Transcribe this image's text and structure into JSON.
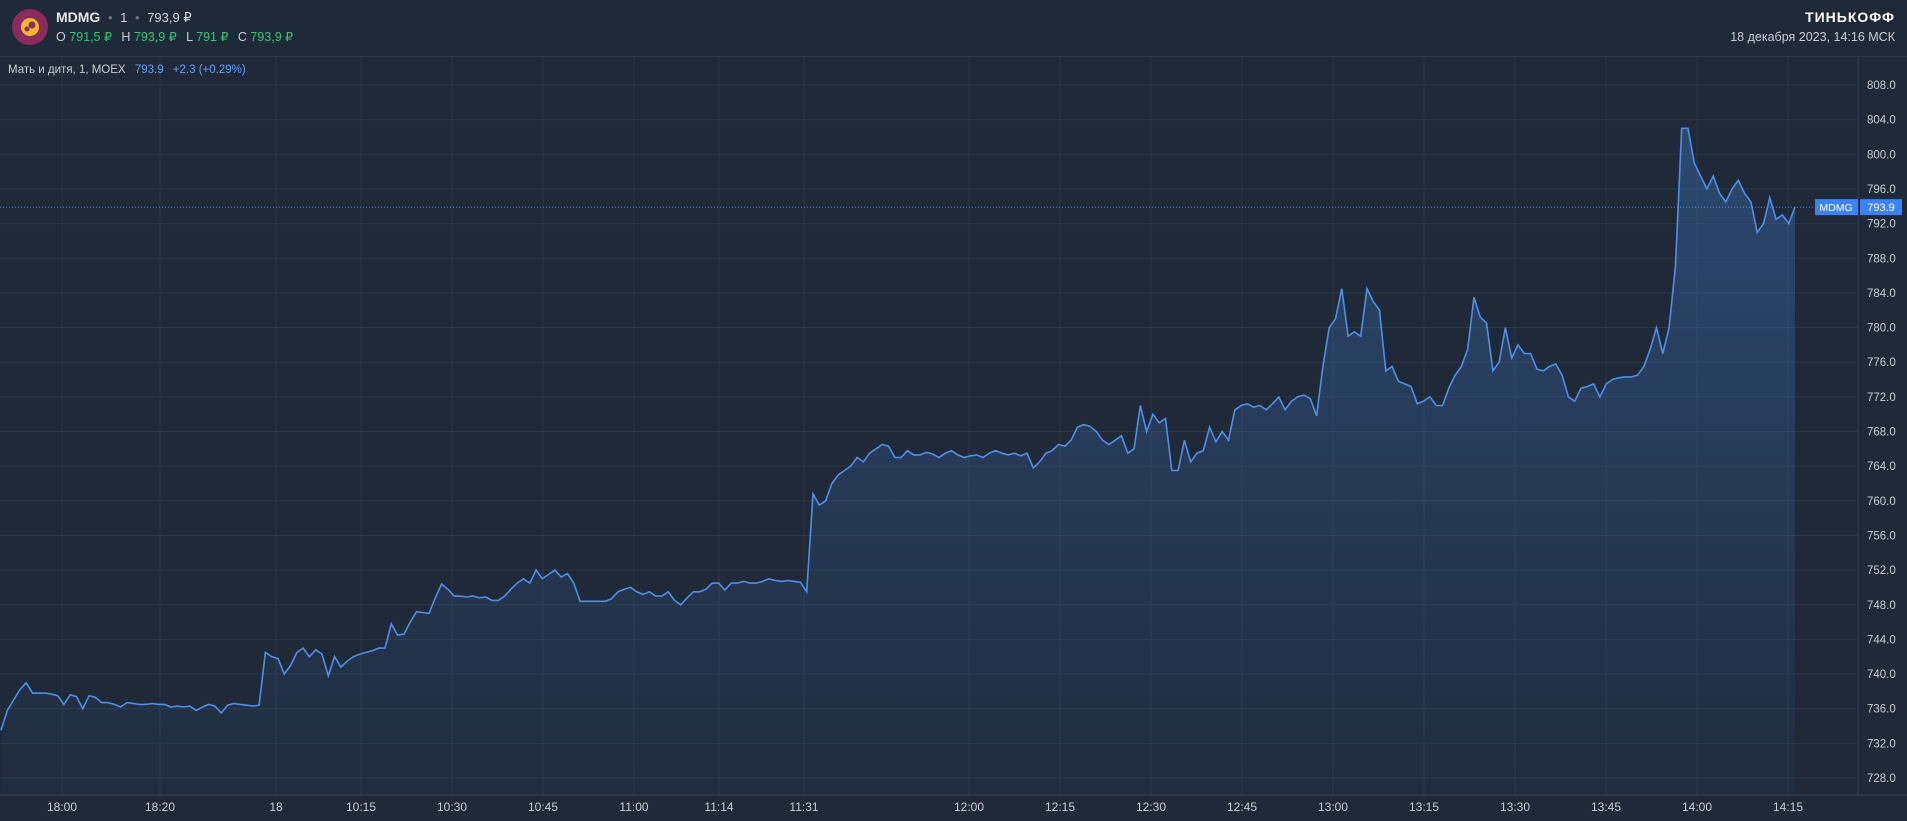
{
  "header": {
    "symbol": "MDMG",
    "interval": "1",
    "last_price": "793,9 ₽",
    "ohlc": [
      {
        "label": "O",
        "value": "791,5 ₽"
      },
      {
        "label": "H",
        "value": "793,9 ₽"
      },
      {
        "label": "L",
        "value": "791 ₽"
      },
      {
        "label": "C",
        "value": "793,9 ₽"
      }
    ],
    "brand": "ТИНЬКОФФ",
    "datetime": "18 декабря 2023, 14:16 МСК"
  },
  "legend": {
    "name": "Мать и дитя, 1, MOEX",
    "price": "793.9",
    "change": "+2.3 (+0.29%)"
  },
  "colors": {
    "background": "#1f2937",
    "line": "#4f8fe8",
    "up": "#2ecc71",
    "grid": "#2b3646"
  },
  "chart_data": {
    "type": "area",
    "title": "",
    "xlabel": "",
    "ylabel": "",
    "ylim": [
      726,
      810
    ],
    "y_ticks": [
      "808.0",
      "804.0",
      "800.0",
      "796.0",
      "792.0",
      "788.0",
      "784.0",
      "780.0",
      "776.0",
      "772.0",
      "768.0",
      "764.0",
      "760.0",
      "756.0",
      "752.0",
      "748.0",
      "744.0",
      "740.0",
      "736.0",
      "732.0",
      "728.0"
    ],
    "x_ticks": [
      "18:00",
      "18:20",
      "18",
      "10:15",
      "10:30",
      "10:45",
      "11:00",
      "11:14",
      "11:31",
      "12:00",
      "12:15",
      "12:30",
      "12:45",
      "13:00",
      "13:15",
      "13:30",
      "13:45",
      "14:00",
      "14:15"
    ],
    "last_value_label": {
      "series": "MDMG",
      "value": "793.9"
    },
    "series": [
      {
        "name": "MDMG",
        "values": [
          733.5,
          735.8,
          737.0,
          738.2,
          739.0,
          737.8,
          737.8,
          737.8,
          737.7,
          737.5,
          736.5,
          737.6,
          737.4,
          736.0,
          737.5,
          737.3,
          736.7,
          736.7,
          736.5,
          736.2,
          736.7,
          736.6,
          736.5,
          736.5,
          736.6,
          736.5,
          736.5,
          736.2,
          736.3,
          736.2,
          736.3,
          735.8,
          736.2,
          736.5,
          736.3,
          735.5,
          736.4,
          736.6,
          736.5,
          736.4,
          736.3,
          736.4,
          742.5,
          742.0,
          741.8,
          740.0,
          741.0,
          742.5,
          743.0,
          742.0,
          742.8,
          742.3,
          739.8,
          742.0,
          740.8,
          741.5,
          742.0,
          742.3,
          742.5,
          742.7,
          743.0,
          743.0,
          745.8,
          744.5,
          744.6,
          746.0,
          747.2,
          747.1,
          747.0,
          748.8,
          750.4,
          749.8,
          749.0,
          749.0,
          748.9,
          749.0,
          748.8,
          748.9,
          748.5,
          748.5,
          749.0,
          749.8,
          750.5,
          751.0,
          750.5,
          752.0,
          751.0,
          751.5,
          752.0,
          751.2,
          751.6,
          750.5,
          748.4,
          748.4,
          748.4,
          748.4,
          748.4,
          748.7,
          749.5,
          749.8,
          750.0,
          749.5,
          749.2,
          749.5,
          749.0,
          749.0,
          749.5,
          748.5,
          748.0,
          748.8,
          749.5,
          749.5,
          749.8,
          750.5,
          750.5,
          749.7,
          750.5,
          750.5,
          750.7,
          750.5,
          750.5,
          750.7,
          751.0,
          750.8,
          750.7,
          750.8,
          750.7,
          750.6,
          749.5,
          760.8,
          759.5,
          760.0,
          762.0,
          763.0,
          763.5,
          764.0,
          765.0,
          764.5,
          765.5,
          766.0,
          766.5,
          766.3,
          765.0,
          765.0,
          765.8,
          765.3,
          765.3,
          765.6,
          765.4,
          765.0,
          765.5,
          765.8,
          765.3,
          765.0,
          765.2,
          765.3,
          765.0,
          765.5,
          765.8,
          765.5,
          765.3,
          765.5,
          765.2,
          765.5,
          763.8,
          764.5,
          765.5,
          765.8,
          766.5,
          766.3,
          767.0,
          768.5,
          768.8,
          768.6,
          768.0,
          767.0,
          766.5,
          767.0,
          767.5,
          765.5,
          766.0,
          771.0,
          768.0,
          770.0,
          769.0,
          769.5,
          763.5,
          763.5,
          767.0,
          764.5,
          765.5,
          765.8,
          768.5,
          766.8,
          768.0,
          767.0,
          770.5,
          771.0,
          771.2,
          770.8,
          771.0,
          770.5,
          771.2,
          772.0,
          770.5,
          771.5,
          772.0,
          772.2,
          771.8,
          769.8,
          775.5,
          780.0,
          781.0,
          784.5,
          779.0,
          779.5,
          779.0,
          784.5,
          783.0,
          782.0,
          775.0,
          775.5,
          773.8,
          773.5,
          773.2,
          771.2,
          771.5,
          772.0,
          771.0,
          771.0,
          773.0,
          774.5,
          775.5,
          777.5,
          783.5,
          781.2,
          780.5,
          775.0,
          776.0,
          780.0,
          776.5,
          778.0,
          777.0,
          777.0,
          775.2,
          775.0,
          775.5,
          775.8,
          774.5,
          772.0,
          771.5,
          773.0,
          773.2,
          773.5,
          772.0,
          773.5,
          774.0,
          774.2,
          774.3,
          774.3,
          774.5,
          775.5,
          777.5,
          780.0,
          777.0,
          780.0,
          787.0,
          803.0,
          803.0,
          799.0,
          797.5,
          796.0,
          797.5,
          795.5,
          794.5,
          796.0,
          797.0,
          795.5,
          794.5,
          791.0,
          792.0,
          795.0,
          792.5,
          793.0,
          792.0,
          793.9
        ]
      }
    ]
  }
}
